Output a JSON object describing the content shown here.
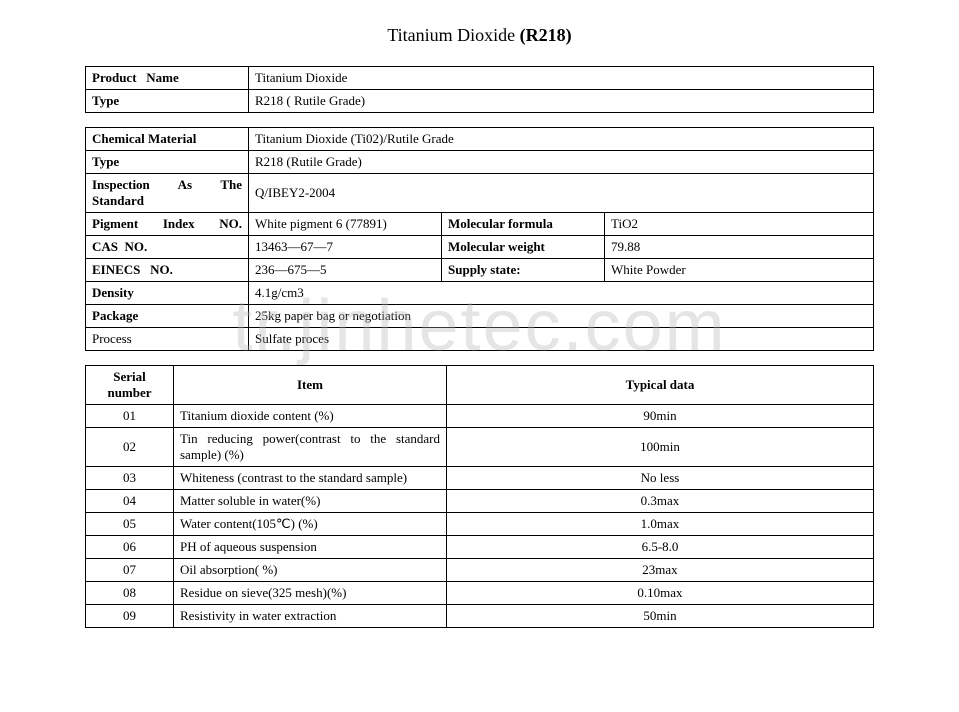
{
  "title_prefix": "Titanium Dioxide ",
  "title_bold": "(R218)",
  "watermark": "tr.jinhetec.com",
  "table1": {
    "product_name_label": "Product   Name",
    "product_name_value": "Titanium Dioxide",
    "type_label": "Type",
    "type_value": "R218 ( Rutile Grade)"
  },
  "table2": {
    "chem_label": "Chemical Material",
    "chem_value": "Titanium Dioxide (Ti02)/Rutile Grade",
    "type_label": "Type",
    "type_value": "R218 (Rutile Grade)",
    "insp_label": "Inspection As The Standard",
    "insp_value": "Q/IBEY2-2004",
    "pigment_label": "Pigment Index NO.",
    "pigment_value": "White pigment 6 (77891)",
    "mol_formula_label": "Molecular formula",
    "mol_formula_value": "TiO2",
    "cas_label": "CAS  NO.",
    "cas_value": "13463—67—7",
    "mol_weight_label": "Molecular weight",
    "mol_weight_value": "79.88",
    "einecs_label": "EINECS   NO.",
    "einecs_value": "236—675—5",
    "supply_label": "Supply state:",
    "supply_value": "White Powder",
    "density_label": "Density",
    "density_value": "4.1g/cm3",
    "package_label": "Package",
    "package_value": "25kg paper bag or negotiation",
    "process_label": "Process",
    "process_value": "Sulfate proces"
  },
  "table3": {
    "header_sn": "Serial number",
    "header_item": "Item",
    "header_data": "Typical data",
    "rows": [
      {
        "sn": "01",
        "item": "Titanium dioxide content (%)",
        "val": "90min"
      },
      {
        "sn": "02",
        "item": "Tin reducing power(contrast to the standard sample) (%)",
        "val": "100min"
      },
      {
        "sn": "03",
        "item": "Whiteness (contrast to the standard sample)",
        "val": "No less"
      },
      {
        "sn": "04",
        "item": "Matter soluble in water(%)",
        "val": "0.3max"
      },
      {
        "sn": "05",
        "item": "Water content(105℃) (%)",
        "val": "1.0max"
      },
      {
        "sn": "06",
        "item": "PH of aqueous suspension",
        "val": "6.5-8.0"
      },
      {
        "sn": "07",
        "item": "Oil absorption( %)",
        "val": "23max"
      },
      {
        "sn": "08",
        "item": "Residue on sieve(325 mesh)(%)",
        "val": "0.10max"
      },
      {
        "sn": "09",
        "item": "Resistivity in water extraction",
        "val": "50min"
      }
    ]
  }
}
